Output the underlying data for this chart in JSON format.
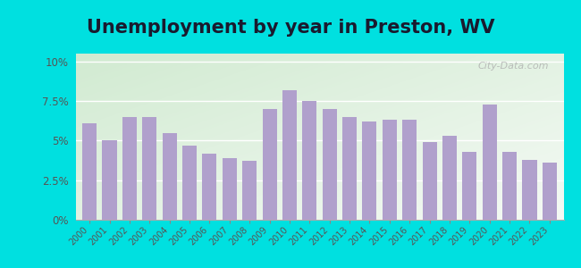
{
  "title": "Unemployment by year in Preston, WV",
  "years": [
    2000,
    2001,
    2002,
    2003,
    2004,
    2005,
    2006,
    2007,
    2008,
    2009,
    2010,
    2011,
    2012,
    2013,
    2014,
    2015,
    2016,
    2017,
    2018,
    2019,
    2020,
    2021,
    2022,
    2023
  ],
  "values": [
    6.1,
    5.0,
    6.5,
    6.5,
    5.5,
    4.7,
    4.2,
    3.9,
    3.7,
    7.0,
    8.2,
    7.5,
    7.0,
    6.5,
    6.2,
    6.3,
    6.35,
    4.9,
    5.3,
    4.3,
    7.3,
    4.3,
    3.8,
    3.6
  ],
  "bar_color": "#b0a0cc",
  "background_outer": "#00e0e0",
  "background_inner_top_left": "#cce8cc",
  "background_inner_bottom_right": "#f0faee",
  "yticks": [
    0,
    2.5,
    5.0,
    7.5,
    10.0
  ],
  "ytick_labels": [
    "0%",
    "2.5%",
    "5%",
    "7.5%",
    "10%"
  ],
  "ylim": [
    0,
    10.5
  ],
  "title_fontsize": 15,
  "watermark": "City-Data.com"
}
